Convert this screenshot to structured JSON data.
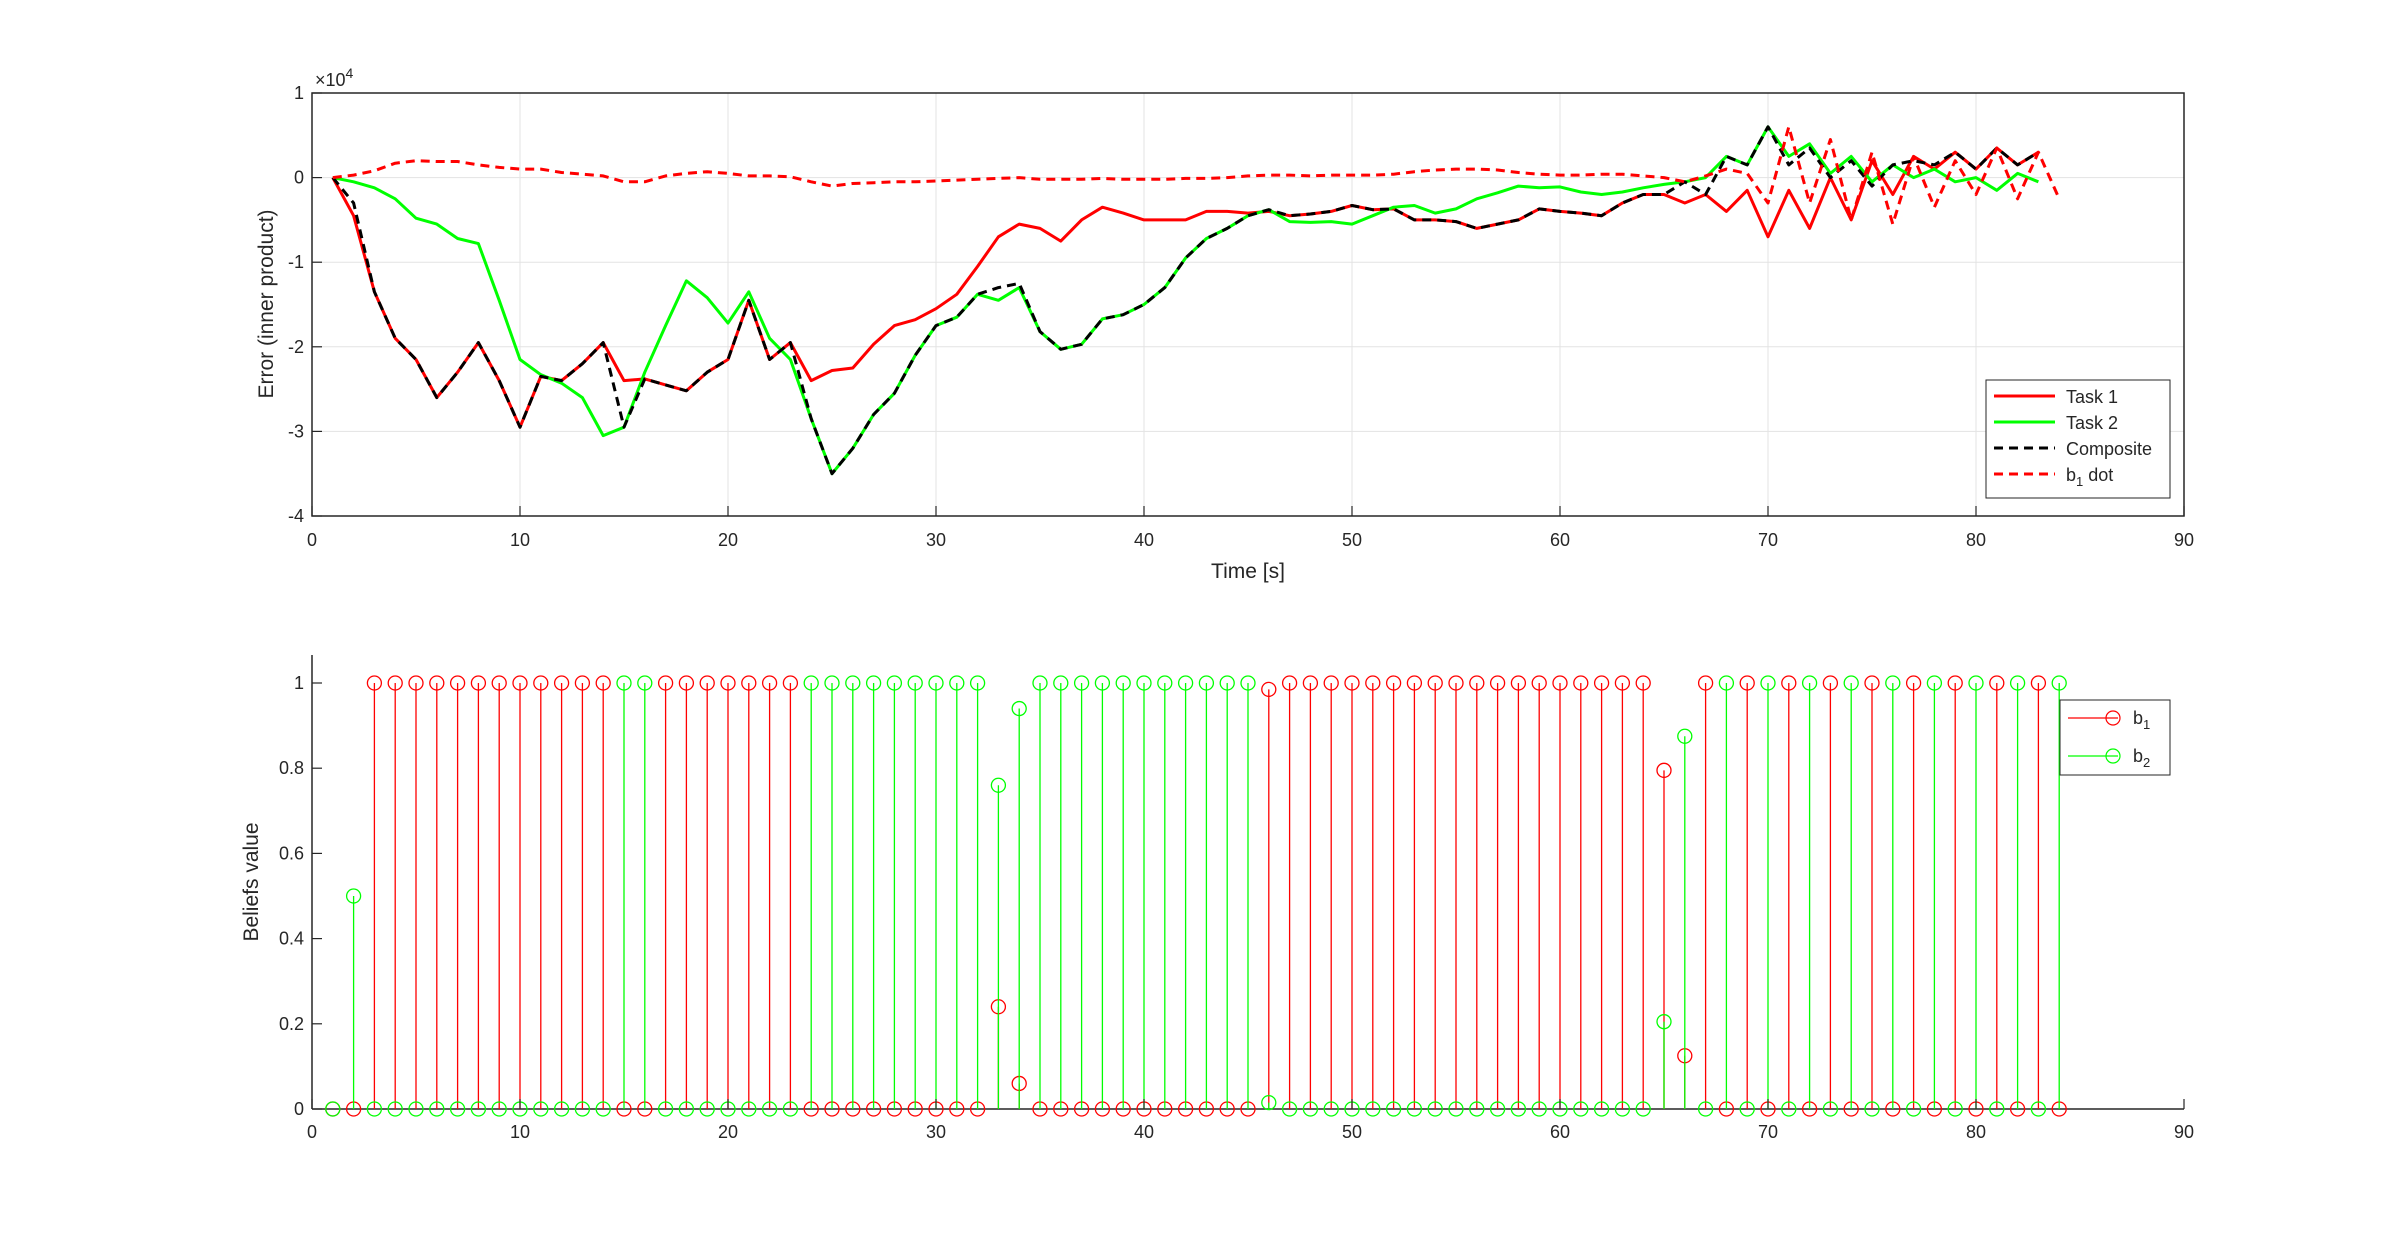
{
  "chart_data": [
    {
      "type": "line",
      "xlabel": "Time [s]",
      "ylabel": "Error (inner product)",
      "exponent_label": "×10",
      "exponent_power": "4",
      "xlim": [
        0,
        90
      ],
      "ylim": [
        -4,
        1
      ],
      "xticks": [
        "0",
        "10",
        "20",
        "30",
        "40",
        "50",
        "60",
        "70",
        "80",
        "90"
      ],
      "yticks": [
        "1",
        "0",
        "-1",
        "-2",
        "-3",
        "-4"
      ],
      "grid": true,
      "legend_position": "lower-right",
      "series": [
        {
          "name": "Task 1",
          "color": "#ff0000",
          "dash": "solid",
          "x": [
            1,
            2,
            3,
            4,
            5,
            6,
            7,
            8,
            9,
            10,
            11,
            12,
            13,
            14,
            15,
            16,
            17,
            18,
            19,
            20,
            21,
            22,
            23,
            24,
            25,
            26,
            27,
            28,
            29,
            30,
            31,
            32,
            33,
            34,
            35,
            36,
            37,
            38,
            39,
            40,
            41,
            42,
            43,
            44,
            45,
            46,
            47,
            48,
            49,
            50,
            51,
            52,
            53,
            54,
            55,
            56,
            57,
            58,
            59,
            60,
            61,
            62,
            63,
            64,
            65,
            66,
            67,
            68,
            69,
            70,
            71,
            72,
            73,
            74,
            75,
            76,
            77,
            78,
            79,
            80,
            81,
            82,
            83
          ],
          "y": [
            0,
            -0.45,
            -1.35,
            -1.9,
            -2.15,
            -2.6,
            -2.3,
            -1.95,
            -2.4,
            -2.95,
            -2.35,
            -2.4,
            -2.2,
            -1.95,
            -2.4,
            -2.38,
            -2.45,
            -2.52,
            -2.3,
            -2.15,
            -1.45,
            -2.15,
            -1.95,
            -2.4,
            -2.28,
            -2.25,
            -1.97,
            -1.75,
            -1.68,
            -1.55,
            -1.38,
            -1.05,
            -0.7,
            -0.55,
            -0.6,
            -0.75,
            -0.5,
            -0.35,
            -0.42,
            -0.5,
            -0.5,
            -0.5,
            -0.4,
            -0.4,
            -0.42,
            -0.4,
            -0.45,
            -0.43,
            -0.4,
            -0.33,
            -0.38,
            -0.37,
            -0.5,
            -0.5,
            -0.52,
            -0.6,
            -0.55,
            -0.5,
            -0.37,
            -0.4,
            -0.42,
            -0.45,
            -0.3,
            -0.2,
            -0.2,
            -0.3,
            -0.2,
            -0.4,
            -0.15,
            -0.7,
            -0.15,
            -0.6,
            0,
            -0.5,
            0.2,
            -0.2,
            0.25,
            0.1,
            0.3,
            0.1,
            0.35,
            0.15,
            0.3
          ]
        },
        {
          "name": "Task 2",
          "color": "#00ff00",
          "dash": "solid",
          "x": [
            1,
            2,
            3,
            4,
            5,
            6,
            7,
            8,
            9,
            10,
            11,
            12,
            13,
            14,
            15,
            16,
            17,
            18,
            19,
            20,
            21,
            22,
            23,
            24,
            25,
            26,
            27,
            28,
            29,
            30,
            31,
            32,
            33,
            34,
            35,
            36,
            37,
            38,
            39,
            40,
            41,
            42,
            43,
            44,
            45,
            46,
            47,
            48,
            49,
            50,
            51,
            52,
            53,
            54,
            55,
            56,
            57,
            58,
            59,
            60,
            61,
            62,
            63,
            64,
            65,
            66,
            67,
            68,
            69,
            70,
            71,
            72,
            73,
            74,
            75,
            76,
            77,
            78,
            79,
            80,
            81,
            82,
            83
          ],
          "y": [
            0,
            -0.05,
            -0.12,
            -0.25,
            -0.48,
            -0.55,
            -0.72,
            -0.78,
            -1.45,
            -2.15,
            -2.33,
            -2.43,
            -2.6,
            -3.05,
            -2.95,
            -2.3,
            -1.75,
            -1.22,
            -1.42,
            -1.72,
            -1.35,
            -1.9,
            -2.15,
            -2.85,
            -3.5,
            -3.2,
            -2.8,
            -2.55,
            -2.1,
            -1.75,
            -1.65,
            -1.38,
            -1.45,
            -1.3,
            -1.82,
            -2.03,
            -1.97,
            -1.67,
            -1.62,
            -1.5,
            -1.3,
            -0.95,
            -0.72,
            -0.6,
            -0.45,
            -0.38,
            -0.52,
            -0.53,
            -0.52,
            -0.55,
            -0.45,
            -0.35,
            -0.33,
            -0.42,
            -0.37,
            -0.25,
            -0.18,
            -0.1,
            -0.12,
            -0.11,
            -0.17,
            -0.2,
            -0.17,
            -0.12,
            -0.08,
            -0.05,
            0,
            0.25,
            0.15,
            0.6,
            0.25,
            0.4,
            0.05,
            0.25,
            -0.05,
            0.15,
            0,
            0.1,
            -0.05,
            0,
            -0.15,
            0.05,
            -0.05
          ]
        },
        {
          "name": "Composite",
          "color": "#000000",
          "dash": "dashed",
          "x": [
            1,
            2,
            3,
            4,
            5,
            6,
            7,
            8,
            9,
            10,
            11,
            12,
            13,
            14,
            15,
            16,
            17,
            18,
            19,
            20,
            21,
            22,
            23,
            24,
            25,
            26,
            27,
            28,
            29,
            30,
            31,
            32,
            33,
            34,
            35,
            36,
            37,
            38,
            39,
            40,
            41,
            42,
            43,
            44,
            45,
            46,
            47,
            48,
            49,
            50,
            51,
            52,
            53,
            54,
            55,
            56,
            57,
            58,
            59,
            60,
            61,
            62,
            63,
            64,
            65,
            66,
            67,
            68,
            69,
            70,
            71,
            72,
            73,
            74,
            75,
            76,
            77,
            78,
            79,
            80,
            81,
            82,
            83
          ],
          "y": [
            0,
            -0.3,
            -1.35,
            -1.9,
            -2.15,
            -2.6,
            -2.3,
            -1.95,
            -2.4,
            -2.95,
            -2.35,
            -2.4,
            -2.2,
            -1.95,
            -2.95,
            -2.38,
            -2.45,
            -2.52,
            -2.3,
            -2.15,
            -1.45,
            -2.15,
            -1.95,
            -2.85,
            -3.5,
            -3.2,
            -2.8,
            -2.55,
            -2.1,
            -1.75,
            -1.65,
            -1.38,
            -1.3,
            -1.25,
            -1.82,
            -2.03,
            -1.97,
            -1.67,
            -1.62,
            -1.5,
            -1.3,
            -0.95,
            -0.72,
            -0.6,
            -0.45,
            -0.38,
            -0.45,
            -0.43,
            -0.4,
            -0.33,
            -0.38,
            -0.37,
            -0.5,
            -0.5,
            -0.52,
            -0.6,
            -0.55,
            -0.5,
            -0.37,
            -0.4,
            -0.42,
            -0.45,
            -0.3,
            -0.2,
            -0.2,
            -0.05,
            -0.2,
            0.25,
            0.15,
            0.6,
            0.15,
            0.35,
            0,
            0.2,
            -0.1,
            0.15,
            0.2,
            0.15,
            0.3,
            0.1,
            0.35,
            0.15,
            0.3
          ]
        },
        {
          "name": "b1 dot",
          "legend_main": "b",
          "legend_sub": "1",
          "legend_rest": " dot",
          "color": "#ff0000",
          "dash": "dashed",
          "x": [
            1,
            2,
            3,
            4,
            5,
            6,
            7,
            8,
            9,
            10,
            11,
            12,
            13,
            14,
            15,
            16,
            17,
            18,
            19,
            20,
            21,
            22,
            23,
            24,
            25,
            26,
            27,
            28,
            29,
            30,
            31,
            32,
            33,
            34,
            35,
            36,
            37,
            38,
            39,
            40,
            41,
            42,
            43,
            44,
            45,
            46,
            47,
            48,
            49,
            50,
            51,
            52,
            53,
            54,
            55,
            56,
            57,
            58,
            59,
            60,
            61,
            62,
            63,
            64,
            65,
            66,
            67,
            68,
            69,
            70,
            71,
            72,
            73,
            74,
            75,
            76,
            77,
            78,
            79,
            80,
            81,
            82,
            83,
            84
          ],
          "y": [
            0,
            0.03,
            0.08,
            0.17,
            0.2,
            0.19,
            0.19,
            0.15,
            0.12,
            0.1,
            0.1,
            0.06,
            0.04,
            0.02,
            -0.05,
            -0.05,
            0.02,
            0.05,
            0.07,
            0.05,
            0.02,
            0.02,
            0.01,
            -0.05,
            -0.1,
            -0.07,
            -0.06,
            -0.05,
            -0.05,
            -0.04,
            -0.03,
            -0.02,
            -0.01,
            0,
            -0.02,
            -0.02,
            -0.02,
            -0.01,
            -0.02,
            -0.02,
            -0.02,
            -0.01,
            -0.01,
            0,
            0.02,
            0.03,
            0.03,
            0.02,
            0.03,
            0.03,
            0.03,
            0.04,
            0.07,
            0.09,
            0.1,
            0.1,
            0.09,
            0.06,
            0.04,
            0.03,
            0.03,
            0.04,
            0.04,
            0.02,
            0,
            -0.05,
            0.02,
            0.1,
            0.05,
            -0.3,
            0.6,
            -0.3,
            0.45,
            -0.5,
            0.3,
            -0.55,
            0.25,
            -0.35,
            0.2,
            -0.2,
            0.35,
            -0.25,
            0.3,
            -0.25
          ]
        }
      ]
    },
    {
      "type": "stem",
      "xlabel": "",
      "ylabel": "Beliefs value",
      "xlim": [
        0,
        90
      ],
      "ylim": [
        0,
        1.1
      ],
      "xticks": [
        "0",
        "10",
        "20",
        "30",
        "40",
        "50",
        "60",
        "70",
        "80",
        "90"
      ],
      "yticks": [
        "0",
        "0.2",
        "0.4",
        "0.6",
        "0.8",
        "1"
      ],
      "grid": false,
      "legend_position": "top-right",
      "series": [
        {
          "name": "b1",
          "legend_main": "b",
          "legend_sub": "1",
          "color": "#ff0000",
          "x": [
            1,
            2,
            3,
            4,
            5,
            6,
            7,
            8,
            9,
            10,
            11,
            12,
            13,
            14,
            15,
            16,
            17,
            18,
            19,
            20,
            21,
            22,
            23,
            24,
            25,
            26,
            27,
            28,
            29,
            30,
            31,
            32,
            33,
            34,
            35,
            36,
            37,
            38,
            39,
            40,
            41,
            42,
            43,
            44,
            45,
            46,
            47,
            48,
            49,
            50,
            51,
            52,
            53,
            54,
            55,
            56,
            57,
            58,
            59,
            60,
            61,
            62,
            63,
            64,
            65,
            66,
            67,
            68,
            69,
            70,
            71,
            72,
            73,
            74,
            75,
            76,
            77,
            78,
            79,
            80,
            81,
            82,
            83,
            84
          ],
          "y": [
            0,
            0,
            1,
            1,
            1,
            1,
            1,
            1,
            1,
            1,
            1,
            1,
            1,
            1,
            0,
            0,
            1,
            1,
            1,
            1,
            1,
            1,
            1,
            0,
            0,
            0,
            0,
            0,
            0,
            0,
            0,
            0,
            0.24,
            0.06,
            0,
            0,
            0,
            0,
            0,
            0,
            0,
            0,
            0,
            0,
            0,
            0.985,
            1,
            1,
            1,
            1,
            1,
            1,
            1,
            1,
            1,
            1,
            1,
            1,
            1,
            1,
            1,
            1,
            1,
            1,
            0.795,
            0.125,
            1,
            0,
            1,
            0,
            1,
            0,
            1,
            0,
            1,
            0,
            1,
            0,
            1,
            0,
            1,
            0,
            1,
            0
          ]
        },
        {
          "name": "b2",
          "legend_main": "b",
          "legend_sub": "2",
          "color": "#00ff00",
          "x": [
            1,
            2,
            3,
            4,
            5,
            6,
            7,
            8,
            9,
            10,
            11,
            12,
            13,
            14,
            15,
            16,
            17,
            18,
            19,
            20,
            21,
            22,
            23,
            24,
            25,
            26,
            27,
            28,
            29,
            30,
            31,
            32,
            33,
            34,
            35,
            36,
            37,
            38,
            39,
            40,
            41,
            42,
            43,
            44,
            45,
            46,
            47,
            48,
            49,
            50,
            51,
            52,
            53,
            54,
            55,
            56,
            57,
            58,
            59,
            60,
            61,
            62,
            63,
            64,
            65,
            66,
            67,
            68,
            69,
            70,
            71,
            72,
            73,
            74,
            75,
            76,
            77,
            78,
            79,
            80,
            81,
            82,
            83,
            84
          ],
          "y": [
            0,
            0.5,
            0,
            0,
            0,
            0,
            0,
            0,
            0,
            0,
            0,
            0,
            0,
            0,
            1,
            1,
            0,
            0,
            0,
            0,
            0,
            0,
            0,
            1,
            1,
            1,
            1,
            1,
            1,
            1,
            1,
            1,
            0.76,
            0.94,
            1,
            1,
            1,
            1,
            1,
            1,
            1,
            1,
            1,
            1,
            1,
            0.015,
            0,
            0,
            0,
            0,
            0,
            0,
            0,
            0,
            0,
            0,
            0,
            0,
            0,
            0,
            0,
            0,
            0,
            0,
            0.205,
            0.875,
            0,
            1,
            0,
            1,
            0,
            1,
            0,
            1,
            0,
            1,
            0,
            1,
            0,
            1,
            0,
            1,
            0,
            1
          ]
        }
      ]
    }
  ]
}
